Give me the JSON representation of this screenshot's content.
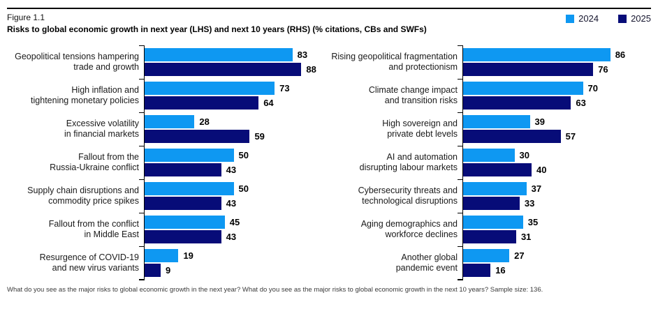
{
  "header": {
    "figure_label": "Figure 1.1",
    "title": "Risks to global economic growth in next year (LHS) and next 10 years (RHS) (% citations, CBs and SWFs)"
  },
  "legend": {
    "items": [
      {
        "label": "2024",
        "color": "#0E98F2"
      },
      {
        "label": "2025",
        "color": "#070C78"
      }
    ]
  },
  "chart_data": [
    {
      "type": "bar",
      "orientation": "horizontal",
      "panel": "LHS",
      "title": "Risks to global economic growth in next year",
      "categories": [
        "Geopolitical tensions hampering\ntrade and growth",
        "High inflation and\ntightening monetary policies",
        "Excessive volatility\nin financial markets",
        "Fallout from the\nRussia-Ukraine conflict",
        "Supply chain disruptions and\ncommodity price spikes",
        "Fallout from the conflict\nin Middle East",
        "Resurgence of COVID-19\nand new virus variants"
      ],
      "series": [
        {
          "name": "2024",
          "color": "#0E98F2",
          "values": [
            83,
            73,
            28,
            50,
            50,
            45,
            19
          ]
        },
        {
          "name": "2025",
          "color": "#070C78",
          "values": [
            88,
            64,
            59,
            43,
            43,
            43,
            9
          ]
        }
      ],
      "xlim": [
        0,
        100
      ],
      "value_labels": true,
      "grid": false
    },
    {
      "type": "bar",
      "orientation": "horizontal",
      "panel": "RHS",
      "title": "Risks to global economic growth in next 10 years",
      "categories": [
        "Rising geopolitical fragmentation\nand protectionism",
        "Climate change impact\nand transition risks",
        "High sovereign and\nprivate debt levels",
        "AI and automation\ndisrupting labour markets",
        "Cybersecurity threats and\ntechnological disruptions",
        "Aging demographics and\nworkforce declines",
        "Another global\npandemic event"
      ],
      "series": [
        {
          "name": "2024",
          "color": "#0E98F2",
          "values": [
            86,
            70,
            39,
            30,
            37,
            35,
            27
          ]
        },
        {
          "name": "2025",
          "color": "#070C78",
          "values": [
            76,
            63,
            57,
            40,
            33,
            31,
            16
          ]
        }
      ],
      "xlim": [
        0,
        100
      ],
      "value_labels": true,
      "grid": false
    }
  ],
  "footnote": "What do you see as the major risks to global economic growth in the next year? What do you see as the major risks to global economic growth in the next 10 years? Sample size: 136."
}
